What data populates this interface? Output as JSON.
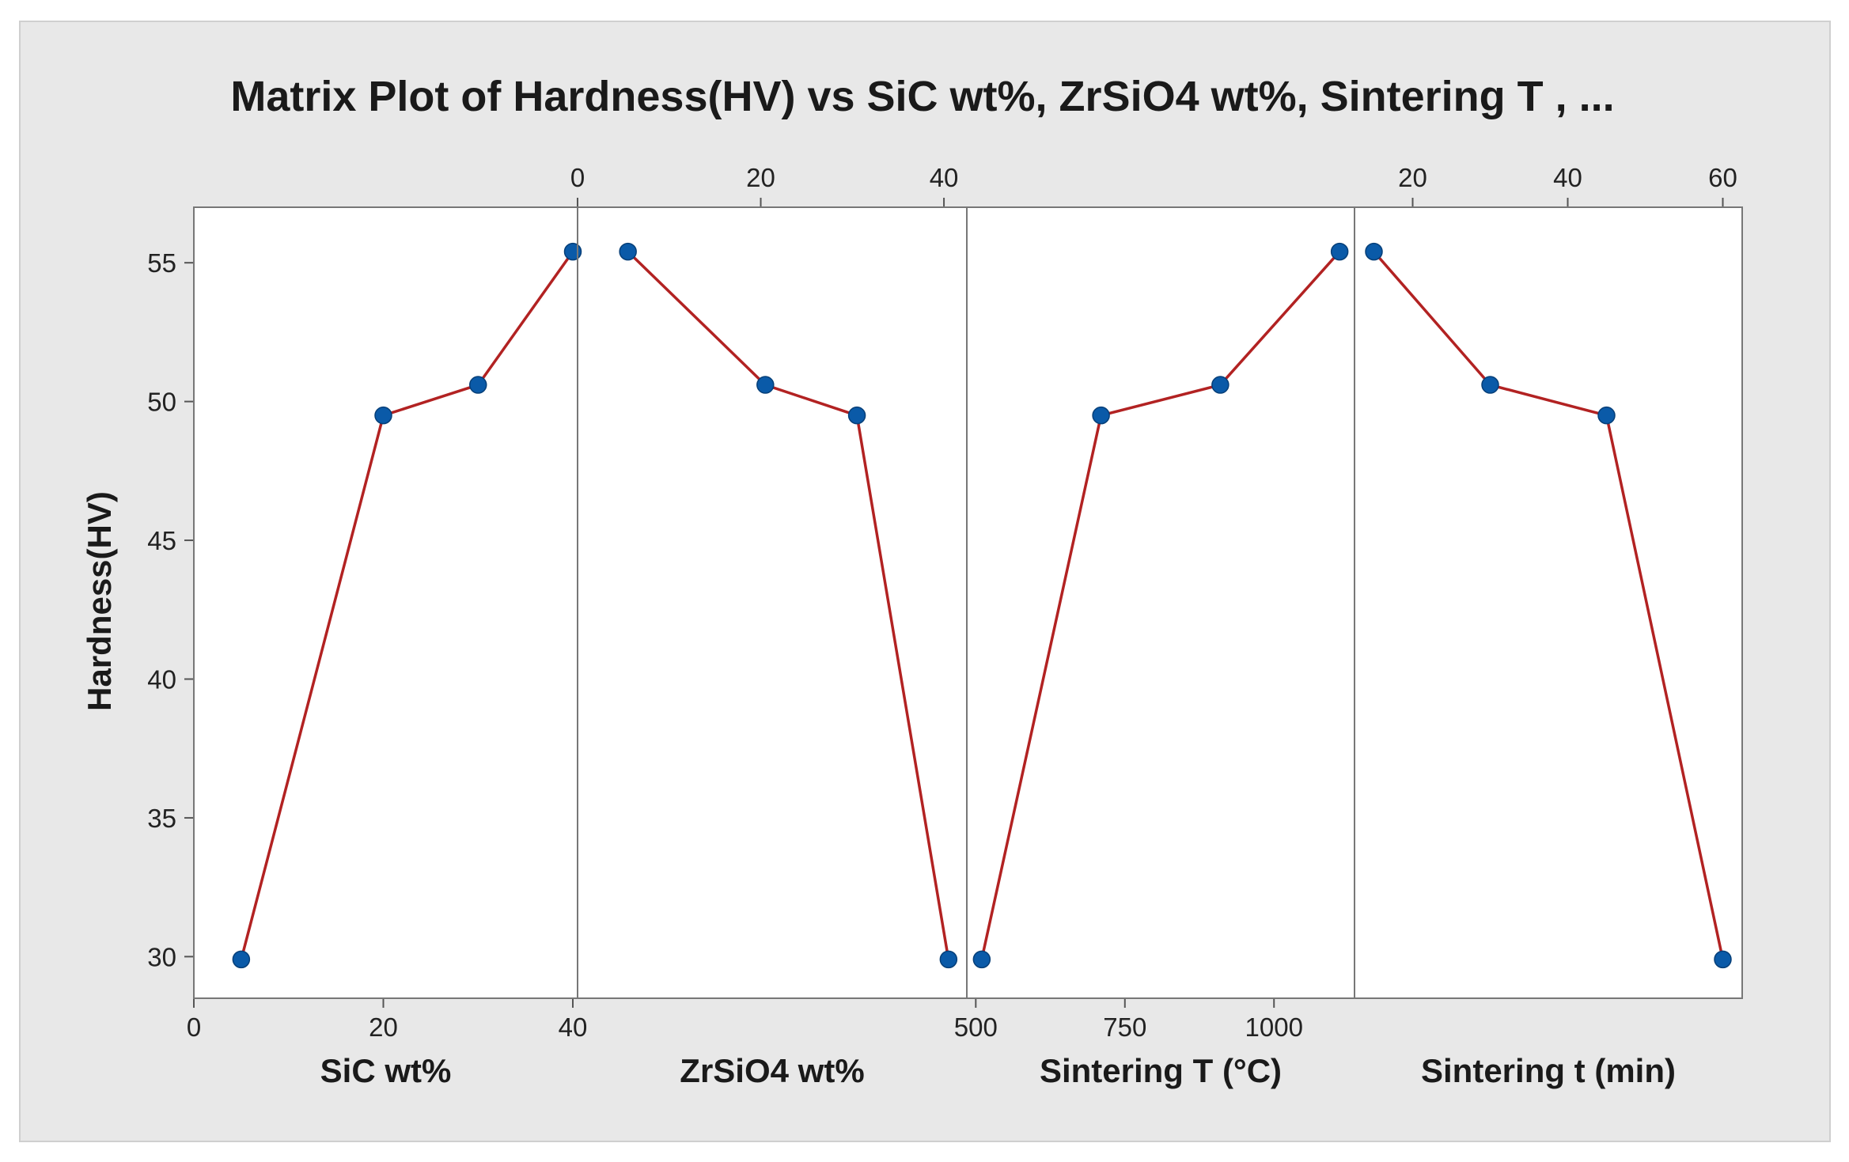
{
  "chart_data": {
    "type": "line",
    "title": "Matrix Plot of Hardness(HV) vs SiC wt%, ZrSiO4 wt%, Sintering T , ...",
    "ylabel": "Hardness(HV)",
    "ylim": [
      28.5,
      57
    ],
    "yticks": [
      30,
      35,
      40,
      45,
      50,
      55
    ],
    "grid": false,
    "legend": "none",
    "colors": {
      "line": "#b22222",
      "marker": "#0a5aa8",
      "background": "#e8e8e8",
      "panel": "#ffffff"
    },
    "panels": [
      {
        "xlabel": "SiC wt%",
        "xlim": [
          0,
          40.5
        ],
        "xticks": [
          0,
          20,
          40
        ],
        "tick_position": "bottom",
        "x": [
          5,
          20,
          30,
          40
        ],
        "y": [
          29.9,
          49.5,
          50.6,
          55.4
        ]
      },
      {
        "xlabel": "ZrSiO4 wt%",
        "xlim": [
          0,
          42.5
        ],
        "xticks": [
          0,
          20,
          40
        ],
        "tick_position": "top",
        "x": [
          5.5,
          20.5,
          30.5,
          40.5
        ],
        "y": [
          55.4,
          50.6,
          49.5,
          29.9
        ]
      },
      {
        "xlabel": "Sintering T (°C)",
        "xlim": [
          485,
          1135
        ],
        "xticks": [
          500,
          750,
          1000
        ],
        "tick_position": "bottom",
        "x": [
          510,
          710,
          910,
          1110
        ],
        "y": [
          29.9,
          49.5,
          50.6,
          55.4
        ]
      },
      {
        "xlabel": "Sintering t (min)",
        "xlim": [
          12.5,
          62.5
        ],
        "xticks": [
          20,
          40,
          60
        ],
        "tick_position": "top",
        "x": [
          15,
          30,
          45,
          60
        ],
        "y": [
          55.4,
          50.6,
          49.5,
          29.9
        ]
      }
    ]
  }
}
